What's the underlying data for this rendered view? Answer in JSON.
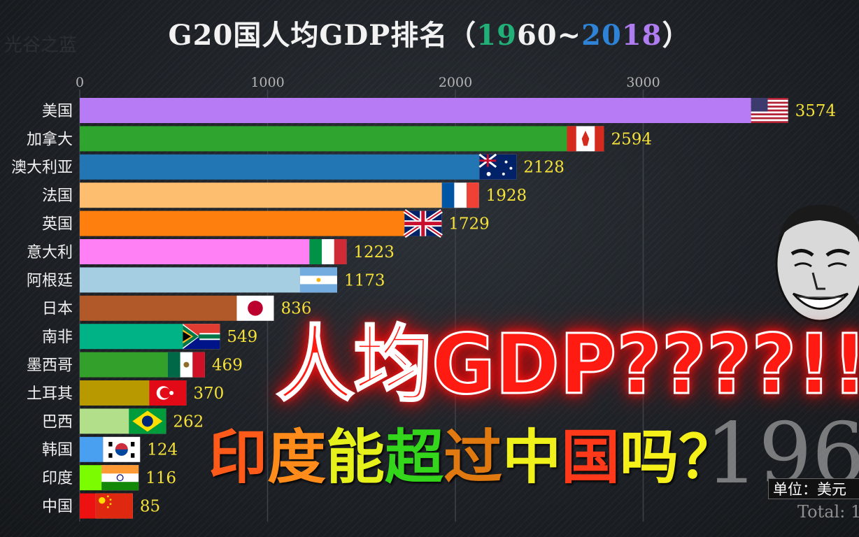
{
  "watermark": "光谷之蓝",
  "title": {
    "prefix": "G20国人均GDP排名（",
    "year_parts": [
      "1",
      "9",
      "60~",
      "2",
      "0",
      "1",
      "8"
    ],
    "suffix": "）"
  },
  "overlay": {
    "line1": "人均GDP????!!",
    "line2": [
      {
        "text": "印",
        "color": "#ff5a1a"
      },
      {
        "text": "度",
        "color": "#ff8c1a"
      },
      {
        "text": "能",
        "color": "#e6f01a"
      },
      {
        "text": "超",
        "color": "#33d61a"
      },
      {
        "text": "过",
        "color": "#e07a10"
      },
      {
        "text": "中",
        "color": "#f0f01a"
      },
      {
        "text": "国",
        "color": "#ff3a1a"
      },
      {
        "text": "吗",
        "color": "#f5f01a"
      },
      {
        "text": "？",
        "color": "#f5f01a"
      }
    ]
  },
  "year_display": "196",
  "unit_label": "单位：美元",
  "total_label": "Total: 1",
  "chart_data": {
    "type": "bar",
    "orientation": "horizontal",
    "xlim": [
      0,
      3600
    ],
    "xticks": [
      0,
      1000,
      2000,
      3000
    ],
    "grid": true,
    "categories": [
      "美国",
      "加拿大",
      "澳大利亚",
      "法国",
      "英国",
      "意大利",
      "阿根廷",
      "日本",
      "南非",
      "墨西哥",
      "土耳其",
      "巴西",
      "韩国",
      "印度",
      "中国"
    ],
    "values": [
      3574,
      2594,
      2128,
      1928,
      1729,
      1223,
      1173,
      836,
      549,
      469,
      370,
      262,
      124,
      116,
      85
    ],
    "colors": [
      "#b77cf5",
      "#2fa52f",
      "#2176b3",
      "#fdbf6f",
      "#ff7f0e",
      "#ff7ff5",
      "#a6cee3",
      "#b15928",
      "#00b386",
      "#33a02c",
      "#b89a00",
      "#b2df8a",
      "#4aa0f0",
      "#7cfc00",
      "#ee1111"
    ],
    "flags": [
      "us-flag-icon",
      "ca-flag-icon",
      "au-flag-icon",
      "fr-flag-icon",
      "gb-flag-icon",
      "it-flag-icon",
      "ar-flag-icon",
      "jp-flag-icon",
      "za-flag-icon",
      "mx-flag-icon",
      "tr-flag-icon",
      "br-flag-icon",
      "kr-flag-icon",
      "in-flag-icon",
      "cn-flag-icon"
    ]
  }
}
